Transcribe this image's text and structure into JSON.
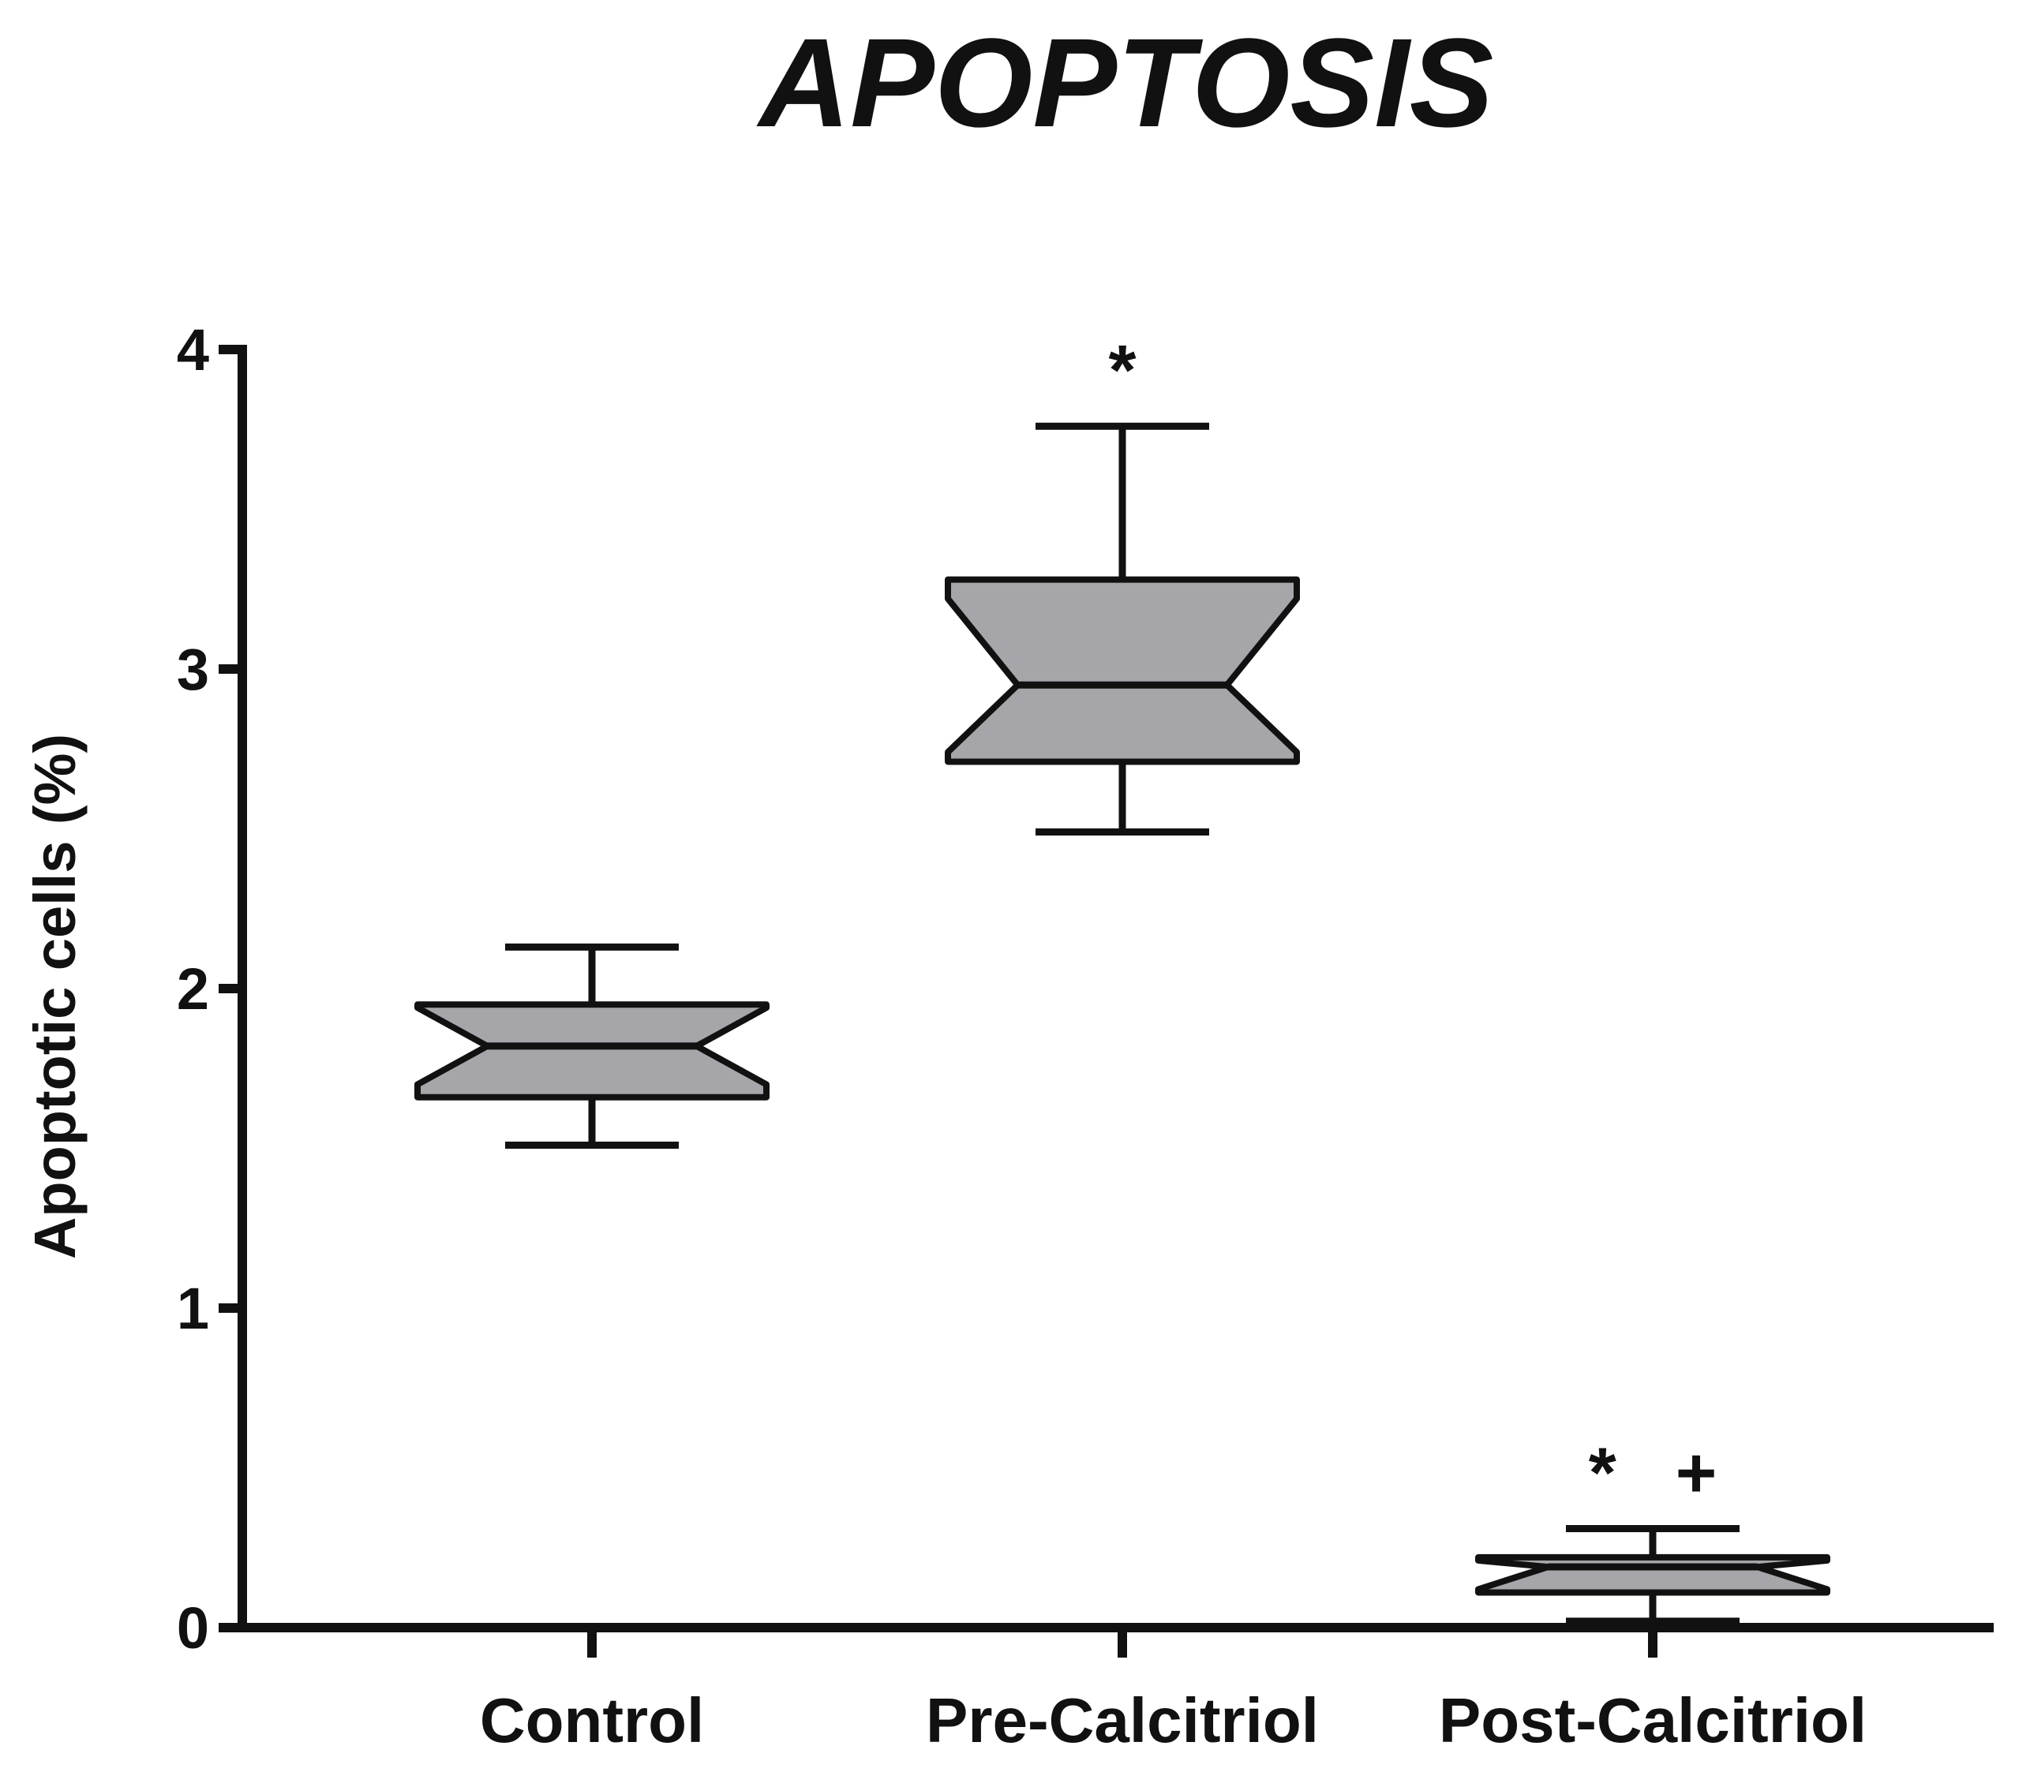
{
  "chart_data": {
    "type": "boxplot",
    "title": "APOPTOSIS",
    "y_label": "Apoptotic cells (%)",
    "categories": [
      "Control",
      "Pre-Calcitriol",
      "Post-Calcitriol"
    ],
    "boxes": [
      {
        "min": 1.51,
        "q1": 1.66,
        "notch_low": 1.7,
        "median": 1.82,
        "notch_high": 1.94,
        "q3": 1.95,
        "max": 2.13
      },
      {
        "min": 2.49,
        "q1": 2.71,
        "notch_low": 2.74,
        "median": 2.95,
        "notch_high": 3.22,
        "q3": 3.28,
        "max": 3.76
      },
      {
        "min": 0.02,
        "q1": 0.11,
        "notch_low": 0.12,
        "median": 0.19,
        "notch_high": 0.21,
        "q3": 0.22,
        "max": 0.31
      }
    ],
    "annotations": [
      null,
      "*",
      "*   +"
    ],
    "color": "#a6a6aa",
    "ylim": [
      0,
      4
    ],
    "yticks": [
      0,
      1,
      2,
      3,
      4
    ]
  }
}
